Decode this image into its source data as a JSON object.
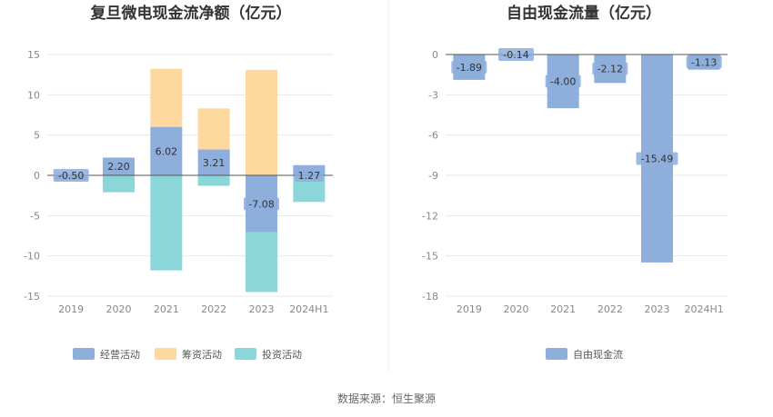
{
  "source": "数据来源：恒生聚源",
  "chart_data": [
    {
      "type": "bar",
      "stacked": true,
      "title": "复旦微电现金流净额（亿元）",
      "categories": [
        "2019",
        "2020",
        "2021",
        "2022",
        "2023",
        "2024H1"
      ],
      "ylim": [
        -15,
        15
      ],
      "yticks": [
        15,
        10,
        5,
        0,
        -5,
        -10,
        -15
      ],
      "grid": true,
      "legend_position": "bottom",
      "series": [
        {
          "name": "经营活动",
          "color": "#8eaedc",
          "values": [
            -0.5,
            2.2,
            6.02,
            3.21,
            -7.08,
            1.27
          ],
          "labels": [
            "-0.50",
            "2.20",
            "6.02",
            "3.21",
            "-7.08",
            "1.27"
          ]
        },
        {
          "name": "筹资活动",
          "color": "#fdd9a0",
          "values": [
            0.2,
            0,
            7.2,
            5.1,
            13.1,
            0
          ],
          "labels": []
        },
        {
          "name": "投资活动",
          "color": "#8bd6d9",
          "values": [
            -0.1,
            -2.1,
            -11.8,
            -1.3,
            -7.4,
            -3.3
          ],
          "labels": []
        }
      ]
    },
    {
      "type": "bar",
      "title": "自由现金流量（亿元）",
      "categories": [
        "2019",
        "2020",
        "2021",
        "2022",
        "2023",
        "2024H1"
      ],
      "ylim": [
        -18,
        0
      ],
      "yticks": [
        0,
        -3,
        -6,
        -9,
        -12,
        -15,
        -18
      ],
      "grid": true,
      "legend_position": "bottom",
      "series": [
        {
          "name": "自由现金流",
          "color": "#8eaedc",
          "values": [
            -1.89,
            -0.14,
            -4.0,
            -2.12,
            -15.49,
            -1.13
          ],
          "labels": [
            "-1.89",
            "-0.14",
            "-4.00",
            "-2.12",
            "-15.49",
            "-1.13"
          ]
        }
      ]
    }
  ]
}
